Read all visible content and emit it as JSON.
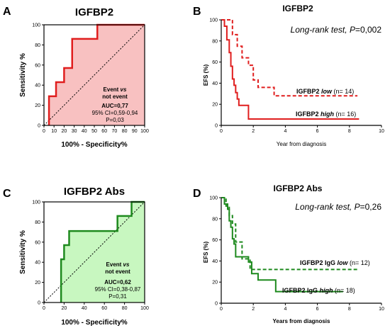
{
  "chart_data": [
    {
      "letter": "A",
      "type": "line",
      "title": "IGFBP2",
      "xlabel": "100% - Specificity%",
      "ylabel": "Sensitivity %",
      "xlim": [
        0,
        100
      ],
      "ylim": [
        0,
        100
      ],
      "xticks": [
        "0",
        "10",
        "20",
        "30",
        "40",
        "50",
        "60",
        "70",
        "80",
        "90",
        "100"
      ],
      "yticks": [
        "0",
        "20",
        "40",
        "60",
        "80",
        "100"
      ],
      "fill_color": "#f8c1c1",
      "line_color": "#e01e1e",
      "roc": {
        "x": [
          5,
          5,
          5,
          12,
          12,
          20,
          20,
          28,
          28,
          53,
          53,
          100
        ],
        "y": [
          0,
          7,
          29,
          29,
          43,
          43,
          57,
          57,
          86,
          86,
          100,
          100
        ]
      },
      "annotation": {
        "line1_a": "Event ",
        "line1_b": "vs",
        "line2": "not event",
        "auc": "AUC=0,77",
        "ci": "95% CI=0,59-0,94",
        "p": "P=0,03"
      }
    },
    {
      "letter": "B",
      "type": "line",
      "title": "IGFBP2",
      "xlabel": "Year from diagnosis",
      "ylabel": "EFS (%)",
      "xlim": [
        0,
        10
      ],
      "ylim": [
        0,
        100
      ],
      "xticks": [
        "0",
        "2",
        "4",
        "6",
        "8",
        "10"
      ],
      "yticks": [
        "0",
        "20",
        "40",
        "60",
        "80",
        "100"
      ],
      "line_color": "#e01e1e",
      "test_label_a": "Long-rank test, ",
      "test_label_b": "P",
      "test_label_c": "=0,002",
      "series": [
        {
          "name_a": "IGFBP2 ",
          "name_b": "low",
          "name_c": " (n= 14)",
          "style": "dashed",
          "x": [
            0,
            0.4,
            0.7,
            0.7,
            1.0,
            1.0,
            1.3,
            1.3,
            1.7,
            1.7,
            2.0,
            2.0,
            2.3,
            2.3,
            3.3,
            3.3,
            8.5
          ],
          "y": [
            100,
            100,
            100,
            86,
            86,
            75,
            75,
            64,
            64,
            57,
            57,
            43,
            43,
            36,
            36,
            28,
            28
          ]
        },
        {
          "name_a": "IGFBP2 ",
          "name_b": "high",
          "name_c": " (n= 16)",
          "style": "solid",
          "x": [
            0,
            0.2,
            0.2,
            0.35,
            0.35,
            0.5,
            0.5,
            0.6,
            0.6,
            0.7,
            0.7,
            0.8,
            0.8,
            0.9,
            0.9,
            1.0,
            1.0,
            1.1,
            1.1,
            1.7,
            1.7,
            8.6
          ],
          "y": [
            100,
            100,
            94,
            94,
            81,
            81,
            69,
            69,
            56,
            56,
            44,
            44,
            38,
            38,
            31,
            31,
            25,
            25,
            19,
            19,
            6,
            6
          ]
        }
      ]
    },
    {
      "letter": "C",
      "type": "line",
      "title": "IGFBP2 Abs",
      "xlabel": "100% - Specificity%",
      "ylabel": "Sensitivity %",
      "xlim": [
        0,
        100
      ],
      "ylim": [
        0,
        100
      ],
      "xticks": [
        "0",
        "20",
        "40",
        "60",
        "80",
        "100"
      ],
      "yticks": [
        "0",
        "20",
        "40",
        "60",
        "80",
        "100"
      ],
      "fill_color": "#c8f7c0",
      "line_color": "#1e8a1e",
      "roc": {
        "x": [
          17,
          17,
          17,
          20,
          20,
          25,
          25,
          73,
          73,
          87,
          87,
          100
        ],
        "y": [
          0,
          29,
          43,
          43,
          57,
          57,
          71,
          71,
          86,
          86,
          100,
          100
        ]
      },
      "annotation": {
        "line1_a": "Event ",
        "line1_b": "vs",
        "line2": "not event",
        "auc": "AUC=0,62",
        "ci": "95% CI=0,38-0,87",
        "p": "P=0,31"
      }
    },
    {
      "letter": "D",
      "type": "line",
      "title": "IGFBP2 Abs",
      "xlabel": "Years from diagnosis",
      "ylabel": "EFS (%)",
      "xlim": [
        0,
        10
      ],
      "ylim": [
        0,
        100
      ],
      "xticks": [
        "0",
        "2",
        "4",
        "6",
        "8",
        "10"
      ],
      "yticks": [
        "0",
        "20",
        "40",
        "60",
        "80",
        "100"
      ],
      "line_color": "#1e8a1e",
      "test_label_a": "Long-rank test, ",
      "test_label_b": "P",
      "test_label_c": "=0,26",
      "series": [
        {
          "name_a": "IGFBP2 IgG ",
          "name_b": "low",
          "name_c": " (n= 12)",
          "style": "dashed",
          "x": [
            0,
            0.3,
            0.3,
            0.5,
            0.5,
            0.7,
            0.7,
            0.9,
            0.9,
            1.3,
            1.3,
            1.8,
            1.8,
            8.6
          ],
          "y": [
            100,
            100,
            92,
            92,
            83,
            83,
            75,
            75,
            58,
            58,
            42,
            42,
            32,
            32
          ]
        },
        {
          "name_a": "IGFBP2 IgG ",
          "name_b": "high",
          "name_c": " (n= 18)",
          "style": "solid",
          "x": [
            0,
            0.2,
            0.2,
            0.4,
            0.4,
            0.5,
            0.5,
            0.6,
            0.6,
            0.7,
            0.7,
            0.8,
            0.8,
            0.9,
            0.9,
            1.7,
            1.7,
            1.9,
            1.9,
            2.3,
            2.3,
            3.4,
            3.4,
            7.6
          ],
          "y": [
            100,
            100,
            94,
            94,
            89,
            89,
            78,
            78,
            72,
            72,
            61,
            61,
            56,
            56,
            44,
            44,
            39,
            39,
            28,
            28,
            22,
            22,
            11,
            11
          ]
        }
      ]
    }
  ]
}
